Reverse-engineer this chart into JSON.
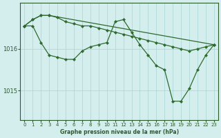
{
  "title": "Graphe pression niveau de la mer (hPa)",
  "bg_color": "#d4eeee",
  "grid_color": "#a8d4d4",
  "line_color": "#2d6a2d",
  "axis_label_color": "#2d5a2d",
  "ylim": [
    1014.3,
    1017.1
  ],
  "yticks": [
    1015.0,
    1016.0
  ],
  "xlim": [
    -0.5,
    23.5
  ],
  "xticks": [
    0,
    1,
    2,
    3,
    4,
    5,
    6,
    7,
    8,
    9,
    10,
    11,
    12,
    13,
    14,
    15,
    16,
    17,
    18,
    19,
    20,
    21,
    22,
    23
  ],
  "series1_x": [
    0,
    1,
    2,
    3,
    4,
    5,
    6,
    7,
    8,
    9,
    10,
    11,
    12,
    13,
    14,
    15,
    16,
    17,
    18,
    19,
    20,
    21,
    22,
    23
  ],
  "series1_y": [
    1016.55,
    1016.7,
    1016.8,
    1016.8,
    1016.75,
    1016.65,
    1016.6,
    1016.55,
    1016.55,
    1016.5,
    1016.45,
    1016.4,
    1016.35,
    1016.3,
    1016.25,
    1016.2,
    1016.15,
    1016.1,
    1016.05,
    1016.0,
    1015.95,
    1016.0,
    1016.05,
    1016.1
  ],
  "series2_x": [
    0,
    1,
    2,
    3,
    4,
    5,
    6,
    7,
    8,
    9,
    10,
    11,
    12,
    13,
    14,
    15,
    16,
    17,
    18,
    19,
    20,
    21,
    22,
    23
  ],
  "series2_y": [
    1016.55,
    1016.55,
    1016.15,
    1015.85,
    1015.8,
    1015.75,
    1015.75,
    1015.95,
    1016.05,
    1016.1,
    1016.15,
    1016.65,
    1016.7,
    1016.4,
    1016.1,
    1015.85,
    1015.6,
    1015.5,
    1014.75,
    1014.75,
    1015.05,
    1015.5,
    1015.85,
    1016.1
  ],
  "series3_x": [
    0,
    1,
    2,
    3,
    23
  ],
  "series3_y": [
    1016.55,
    1016.7,
    1016.8,
    1016.8,
    1016.1
  ]
}
